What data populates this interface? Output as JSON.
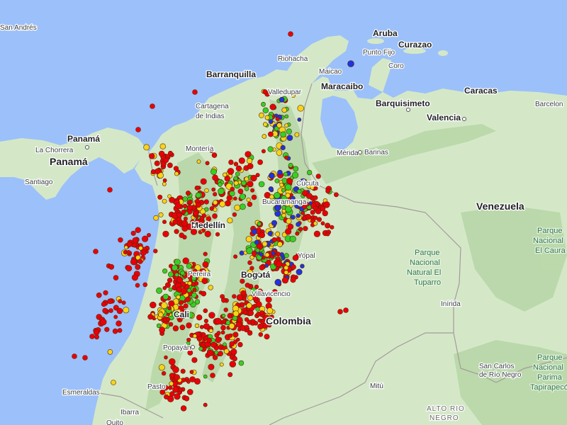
{
  "map": {
    "colors": {
      "water": "#9cc0f9",
      "land": "#d4e8c8",
      "land_dark": "#b6d6a6",
      "border": "#a59a9a",
      "quake_red": "#e8000b",
      "quake_yellow": "#f7d31b",
      "quake_green": "#33d128",
      "quake_blue": "#1f33e0"
    },
    "marker_legend_colors": [
      "red-marker",
      "yellow-marker",
      "green-marker",
      "blue-marker"
    ],
    "labels": {
      "san_andres": "San Andrés",
      "aruba": "Aruba",
      "curazao": "Curazao",
      "punto_fijo": "Punto Fijo",
      "coro": "Coro",
      "riohacha": "Riohacha",
      "maicao": "Maicao",
      "barranquilla": "Barranquilla",
      "valledupar": "Valledupar",
      "maracaibo": "Maracaibo",
      "cartagena": "Cartagena\nde Indias",
      "caracas": "Caracas",
      "barcelona": "Barcelon",
      "barquisimeto": "Barquisimeto",
      "valencia": "Valencia",
      "panama_city": "Panamá",
      "panama_country": "Panamá",
      "la_chorrera": "La Chorrera",
      "santiago": "Santiago",
      "monteria": "Montería",
      "merida": "Mérida",
      "barinas": "Barinas",
      "cucuta": "Cúcuta",
      "bucaramanga": "Bucaramanga",
      "venezuela": "Venezuela",
      "medellin": "Medellín",
      "bogota": "Bogotá",
      "villavicencio": "Villavicencio",
      "yopal": "Yopal",
      "pereira": "Pereira",
      "cali": "Cali",
      "colombia": "Colombia",
      "popayan": "Popayán",
      "pasto": "Pasto",
      "esmeraldas": "Esmeraldas",
      "ibarra": "Ibarra",
      "quito": "Quito",
      "mitu": "Mitú",
      "inirida": "Inírida",
      "san_carlos": "San Carlos\nde Río Negro",
      "alto_rio_negro": "ALTO RIO\nNEGRO",
      "park_tuparro": "Parque\nNacional\nNatural El\nTuparro",
      "park_canaima": "Parque\nNacional\nEl Caura",
      "park_parima": "Parque\nNacional\nParima\nTapirapecó"
    }
  }
}
